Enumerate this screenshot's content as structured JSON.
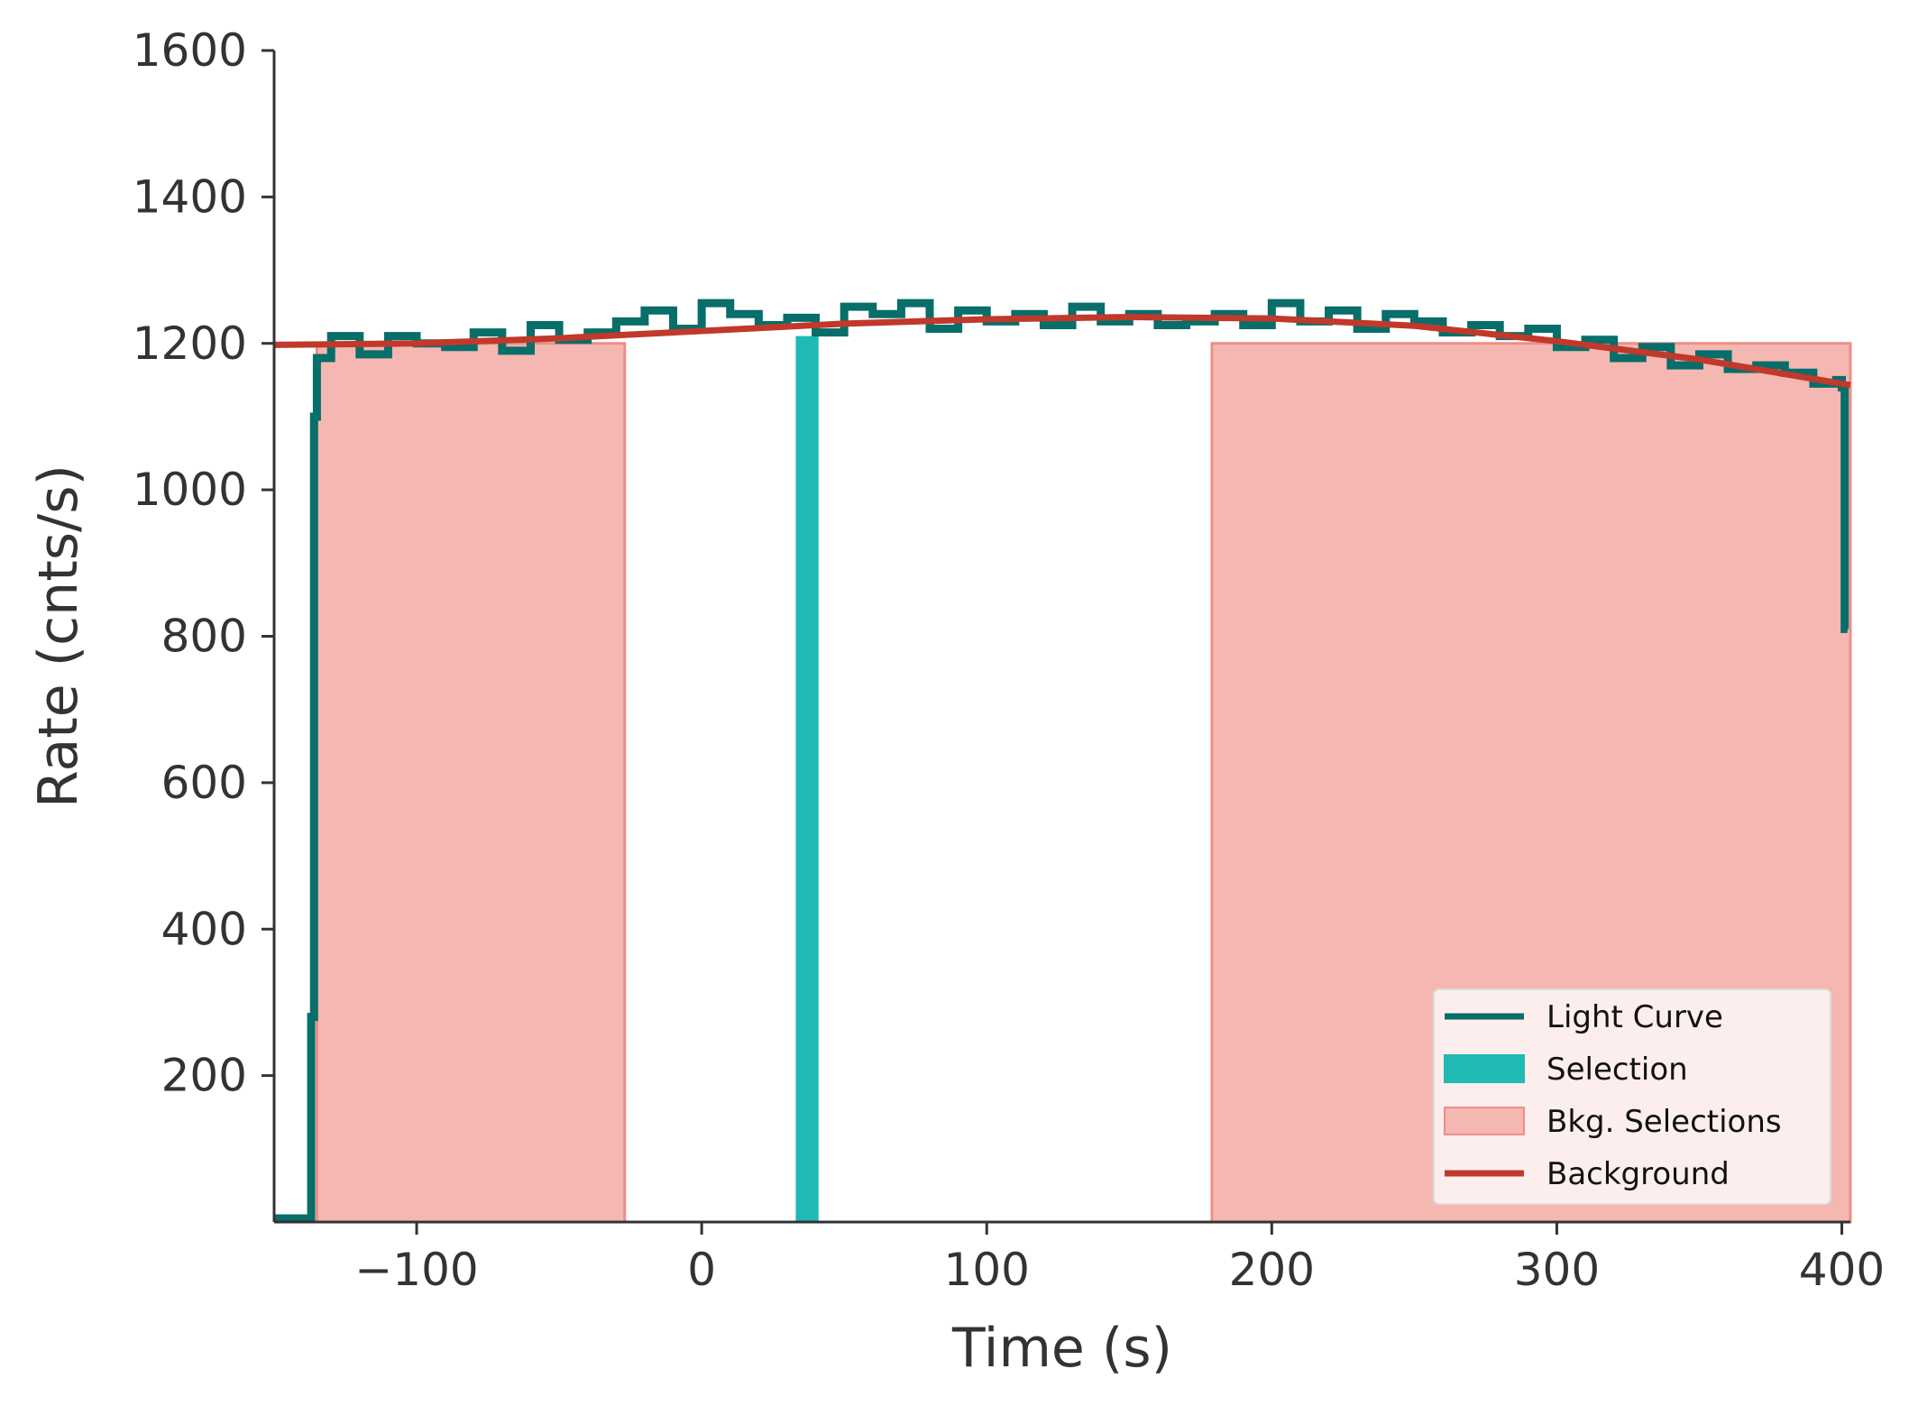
{
  "chart_data": {
    "type": "line",
    "title": "",
    "xlabel": "Time (s)",
    "ylabel": "Rate (cnts/s)",
    "xlim": [
      -150,
      403
    ],
    "ylim": [
      0,
      1600
    ],
    "xticks": [
      {
        "value": -100,
        "label": "−100"
      },
      {
        "value": 0,
        "label": "0"
      },
      {
        "value": 100,
        "label": "100"
      },
      {
        "value": 200,
        "label": "200"
      },
      {
        "value": 300,
        "label": "300"
      },
      {
        "value": 400,
        "label": "400"
      }
    ],
    "yticks": [
      {
        "value": 200,
        "label": "200"
      },
      {
        "value": 400,
        "label": "400"
      },
      {
        "value": 600,
        "label": "600"
      },
      {
        "value": 800,
        "label": "800"
      },
      {
        "value": 1000,
        "label": "1000"
      },
      {
        "value": 1200,
        "label": "1200"
      },
      {
        "value": 1400,
        "label": "1400"
      },
      {
        "value": 1600,
        "label": "1600"
      }
    ],
    "grid": false,
    "legend_position": "bottom-right",
    "legend": [
      {
        "label": "Light Curve",
        "kind": "line",
        "color": "#076e6a"
      },
      {
        "label": "Selection",
        "kind": "patch",
        "color": "#1fbab5"
      },
      {
        "label": "Bkg. Selections",
        "kind": "patch",
        "color": "#f5b7b1"
      },
      {
        "label": "Background",
        "kind": "line",
        "color": "#c0392b"
      }
    ],
    "series": [
      {
        "name": "Light Curve",
        "color": "#076e6a",
        "x": [
          -150,
          -138,
          -137,
          -136,
          -135,
          -130,
          -120,
          -110,
          -100,
          -90,
          -80,
          -70,
          -60,
          -50,
          -40,
          -30,
          -20,
          -10,
          0,
          10,
          20,
          30,
          40,
          50,
          60,
          70,
          80,
          90,
          100,
          110,
          120,
          130,
          140,
          150,
          160,
          170,
          180,
          190,
          200,
          210,
          220,
          230,
          240,
          250,
          260,
          270,
          280,
          290,
          300,
          310,
          320,
          330,
          340,
          350,
          360,
          370,
          380,
          390,
          398,
          400,
          401,
          402
        ],
        "y": [
          5,
          5,
          280,
          1100,
          1180,
          1210,
          1185,
          1210,
          1200,
          1195,
          1215,
          1190,
          1225,
          1205,
          1215,
          1230,
          1245,
          1220,
          1255,
          1240,
          1225,
          1235,
          1215,
          1250,
          1240,
          1255,
          1220,
          1245,
          1230,
          1240,
          1225,
          1250,
          1230,
          1240,
          1225,
          1230,
          1240,
          1225,
          1255,
          1230,
          1245,
          1220,
          1240,
          1230,
          1215,
          1225,
          1210,
          1220,
          1195,
          1205,
          1180,
          1195,
          1170,
          1185,
          1165,
          1170,
          1160,
          1145,
          1150,
          1140,
          810,
          810
        ]
      },
      {
        "name": "Background",
        "color": "#c0392b",
        "x": [
          -150,
          -100,
          -50,
          0,
          50,
          100,
          150,
          200,
          250,
          300,
          350,
          403
        ],
        "y": [
          1198,
          1200,
          1207,
          1217,
          1227,
          1233,
          1236,
          1234,
          1224,
          1203,
          1178,
          1143
        ]
      }
    ],
    "selection": {
      "label": "Selection",
      "start": 33,
      "end": 41,
      "height": 1210,
      "color": "#1fbab5"
    },
    "background_selections": {
      "label": "Bkg. Selections",
      "color": "#f5b7b1",
      "intervals": [
        [
          -135,
          -27
        ],
        [
          179,
          403
        ]
      ]
    }
  }
}
